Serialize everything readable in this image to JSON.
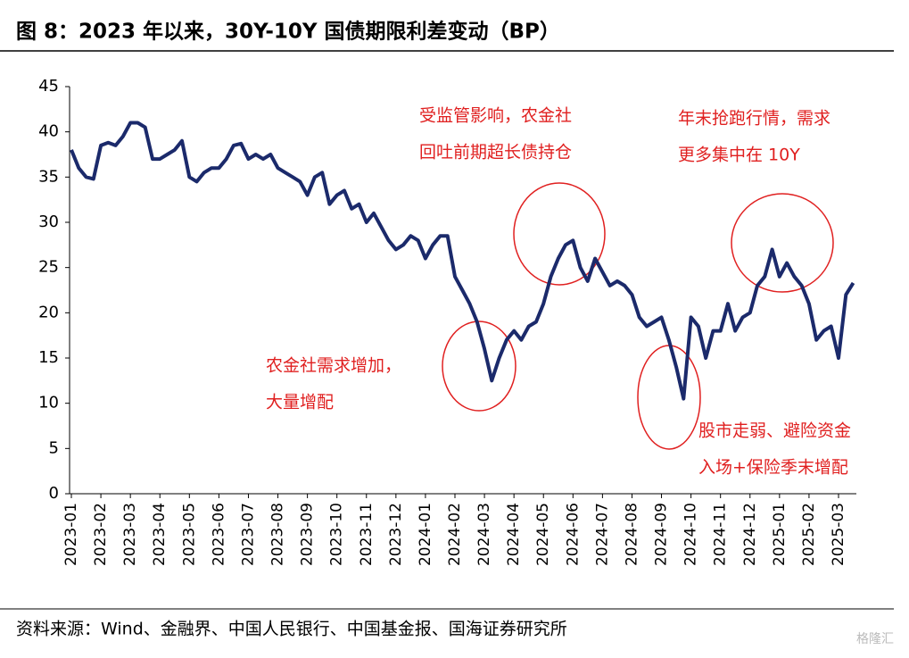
{
  "chart_data": {
    "type": "line",
    "title": "图 8：2023 年以来，30Y-10Y 国债期限利差变动（BP）",
    "source": "资料来源：Wind、金融界、中国人民银行、中国基金报、国海证券研究所",
    "watermark": "格隆汇",
    "categories": [
      "2023-01",
      null,
      null,
      null,
      "2023-02",
      null,
      null,
      null,
      "2023-03",
      null,
      null,
      null,
      "2023-04",
      null,
      null,
      null,
      "2023-05",
      null,
      null,
      null,
      "2023-06",
      null,
      null,
      null,
      "2023-07",
      null,
      null,
      null,
      "2023-08",
      null,
      null,
      null,
      "2023-09",
      null,
      null,
      null,
      "2023-10",
      null,
      null,
      null,
      "2023-11",
      null,
      null,
      null,
      "2023-12",
      null,
      null,
      null,
      "2024-01",
      null,
      null,
      null,
      "2024-02",
      null,
      null,
      null,
      "2024-03",
      null,
      null,
      null,
      "2024-04",
      null,
      null,
      null,
      "2024-05",
      null,
      null,
      null,
      "2024-06",
      null,
      null,
      null,
      "2024-07",
      null,
      null,
      null,
      "2024-08",
      null,
      null,
      null,
      "2024-09",
      null,
      null,
      null,
      "2024-10",
      null,
      null,
      null,
      "2024-11",
      null,
      null,
      null,
      "2024-12",
      null,
      null,
      null,
      "2025-01",
      null,
      null,
      null,
      "2025-02",
      null,
      null,
      null,
      "2025-03",
      null,
      null
    ],
    "values": [
      38,
      36,
      35,
      34.8,
      38.5,
      38.8,
      38.5,
      39.5,
      41,
      41,
      40.5,
      37,
      37,
      37.5,
      38,
      39,
      35,
      34.5,
      35.5,
      36,
      36,
      37,
      38.5,
      38.7,
      37,
      37.5,
      37,
      37.5,
      36,
      35.5,
      35,
      34.5,
      33,
      35,
      35.5,
      32,
      33,
      33.5,
      31.5,
      32,
      30,
      31,
      29.5,
      28,
      27,
      27.5,
      28.5,
      28,
      26,
      27.5,
      28.5,
      28.5,
      24,
      22.5,
      21,
      19,
      16,
      12.5,
      15,
      17,
      18,
      17,
      18.5,
      19,
      21,
      24,
      26,
      27.5,
      28,
      25,
      23.5,
      26,
      24.5,
      23,
      23.5,
      23,
      22,
      19.5,
      18.5,
      19,
      19.5,
      17,
      14,
      10.5,
      19.5,
      18.5,
      15,
      18,
      18,
      21,
      18,
      19.5,
      20,
      23,
      24,
      27,
      24,
      25.5,
      24,
      23,
      21,
      17,
      18,
      18.5,
      15,
      22,
      23.3
    ],
    "color": "#1b2a6b",
    "ylim": [
      0,
      45
    ],
    "yticks": [
      0,
      5,
      10,
      15,
      20,
      25,
      30,
      35,
      40,
      45
    ],
    "annotations": [
      [
        "受监管影响，农金社",
        "回吐前期超长债持仓"
      ],
      [
        "年末抢跑行情，需求",
        "更多集中在 10Y"
      ],
      [
        "农金社需求增加，",
        "大量增配"
      ],
      [
        "股市走弱、避险资金",
        "入场+保险季末增配"
      ]
    ],
    "annotation_color": "#e02020"
  }
}
